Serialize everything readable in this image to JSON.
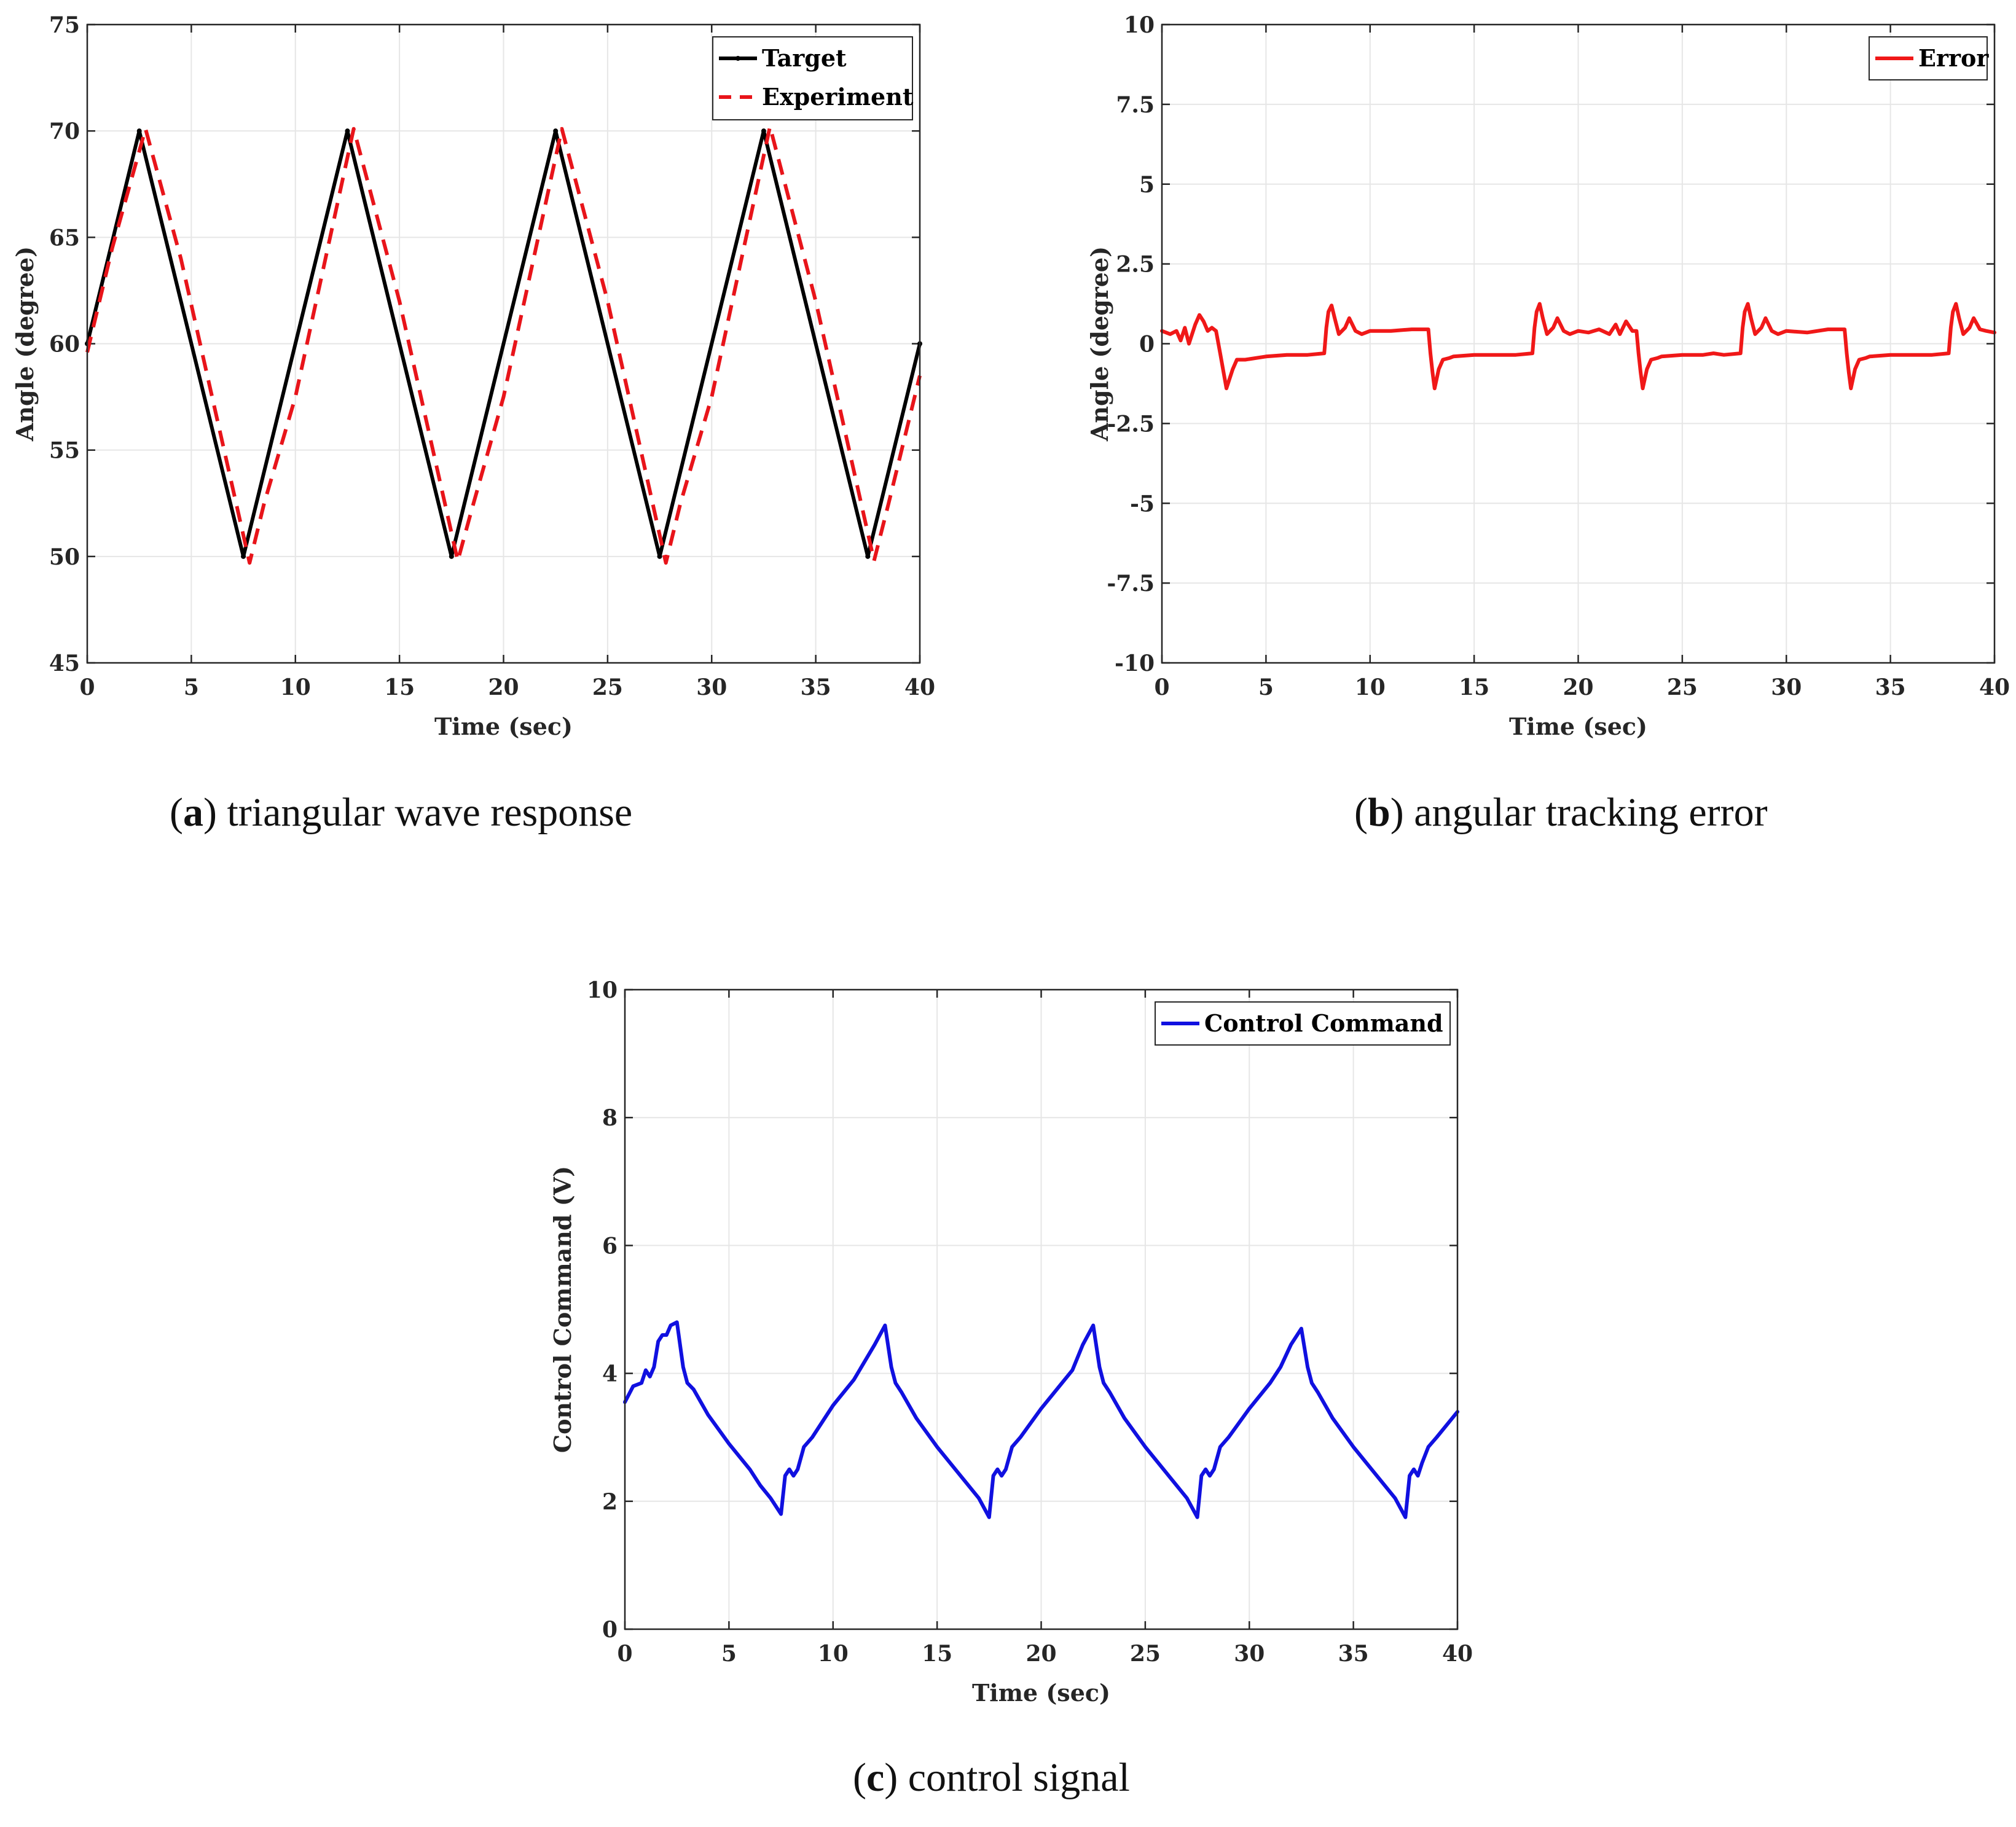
{
  "figure": {
    "captions": [
      {
        "letter": "a",
        "text": "triangular wave response"
      },
      {
        "letter": "b",
        "text": "angular tracking error"
      },
      {
        "letter": "c",
        "text": "control signal"
      }
    ]
  },
  "colors": {
    "target": "#000000",
    "experiment": "#e8141a",
    "error": "#f01818",
    "control": "#1010e0",
    "grid": "#e6e6e6",
    "axis": "#262626"
  },
  "chart_data": [
    {
      "id": "a",
      "type": "line",
      "title": "",
      "xlabel": "Time (sec)",
      "ylabel": "Angle (degree)",
      "xlim": [
        0,
        40
      ],
      "ylim": [
        45,
        75
      ],
      "xticks": [
        0,
        5,
        10,
        15,
        20,
        25,
        30,
        35,
        40
      ],
      "yticks": [
        45,
        50,
        55,
        60,
        65,
        70,
        75
      ],
      "grid": true,
      "legend": "top-right",
      "series": [
        {
          "name": "Target",
          "style": "solid-dot",
          "color": "#000000",
          "x": [
            0,
            2.5,
            7.5,
            12.5,
            17.5,
            22.5,
            27.5,
            32.5,
            37.5,
            40
          ],
          "y": [
            60,
            70,
            50,
            70,
            50,
            70,
            50,
            70,
            50,
            60
          ]
        },
        {
          "name": "Experiment",
          "style": "dashed",
          "color": "#e8141a",
          "x": [
            0,
            1.2,
            2.8,
            4.5,
            7.8,
            8.5,
            10,
            12.8,
            15,
            17.8,
            18.5,
            20,
            22.8,
            25,
            27.8,
            28.5,
            30,
            32.8,
            35,
            37.8,
            38.5,
            40
          ],
          "y": [
            59.6,
            64.5,
            70.1,
            64,
            49.7,
            52.5,
            57.5,
            70.1,
            62,
            49.8,
            52.3,
            57.5,
            70.1,
            62,
            49.7,
            52.5,
            57.5,
            70.2,
            62,
            49.8,
            52.5,
            58.5
          ]
        }
      ]
    },
    {
      "id": "b",
      "type": "line",
      "title": "",
      "xlabel": "Time (sec)",
      "ylabel": "Angle (degree)",
      "xlim": [
        0,
        40
      ],
      "ylim": [
        -10,
        10
      ],
      "xticks": [
        0,
        5,
        10,
        15,
        20,
        25,
        30,
        35,
        40
      ],
      "yticks": [
        -10,
        -7.5,
        -5,
        -2.5,
        0,
        2.5,
        5,
        7.5,
        10
      ],
      "grid": true,
      "legend": "top-right",
      "series": [
        {
          "name": "Error",
          "style": "solid",
          "color": "#f01818",
          "x": [
            0,
            0.4,
            0.7,
            0.9,
            1.1,
            1.3,
            1.6,
            1.8,
            2.0,
            2.2,
            2.4,
            2.6,
            2.8,
            3.1,
            3.4,
            3.6,
            4,
            5,
            6,
            7,
            7.8,
            7.9,
            8.0,
            8.15,
            8.3,
            8.5,
            8.8,
            9.0,
            9.3,
            9.6,
            10,
            11,
            12,
            12.8,
            12.9,
            13.0,
            13.1,
            13.3,
            13.5,
            13.8,
            14,
            15,
            16,
            17,
            17.8,
            17.9,
            18.0,
            18.15,
            18.3,
            18.5,
            18.8,
            19.0,
            19.3,
            19.6,
            20,
            20.5,
            21,
            21.5,
            21.8,
            22,
            22.3,
            22.6,
            22.8,
            22.9,
            23.0,
            23.1,
            23.3,
            23.5,
            23.8,
            24,
            25,
            26,
            26.5,
            27,
            27.8,
            27.9,
            28.0,
            28.15,
            28.3,
            28.5,
            28.8,
            29.0,
            29.3,
            29.6,
            30,
            31,
            32,
            32.8,
            32.9,
            33.0,
            33.1,
            33.3,
            33.5,
            33.8,
            34,
            35,
            36,
            37,
            37.8,
            37.9,
            38.0,
            38.15,
            38.3,
            38.5,
            38.8,
            39.0,
            39.3,
            39.6,
            40
          ],
          "y": [
            0.4,
            0.3,
            0.4,
            0.1,
            0.5,
            0.0,
            0.6,
            0.9,
            0.7,
            0.4,
            0.5,
            0.4,
            -0.3,
            -1.4,
            -0.8,
            -0.5,
            -0.5,
            -0.4,
            -0.35,
            -0.35,
            -0.3,
            0.5,
            1.0,
            1.2,
            0.8,
            0.3,
            0.5,
            0.8,
            0.4,
            0.3,
            0.4,
            0.4,
            0.45,
            0.45,
            -0.3,
            -0.9,
            -1.4,
            -0.8,
            -0.5,
            -0.45,
            -0.4,
            -0.35,
            -0.35,
            -0.35,
            -0.3,
            0.5,
            1.0,
            1.25,
            0.8,
            0.3,
            0.5,
            0.8,
            0.4,
            0.3,
            0.4,
            0.35,
            0.45,
            0.3,
            0.6,
            0.3,
            0.7,
            0.4,
            0.4,
            -0.3,
            -0.9,
            -1.4,
            -0.8,
            -0.5,
            -0.45,
            -0.4,
            -0.35,
            -0.35,
            -0.3,
            -0.35,
            -0.3,
            0.5,
            1.0,
            1.25,
            0.8,
            0.3,
            0.5,
            0.8,
            0.4,
            0.3,
            0.4,
            0.35,
            0.45,
            0.45,
            -0.3,
            -0.9,
            -1.4,
            -0.8,
            -0.5,
            -0.45,
            -0.4,
            -0.35,
            -0.35,
            -0.35,
            -0.3,
            0.5,
            1.0,
            1.25,
            0.8,
            0.3,
            0.5,
            0.8,
            0.45,
            0.4,
            0.35
          ]
        }
      ]
    },
    {
      "id": "c",
      "type": "line",
      "title": "",
      "xlabel": "Time (sec)",
      "ylabel": "Control Command (V)",
      "xlim": [
        0,
        40
      ],
      "ylim": [
        0,
        10
      ],
      "xticks": [
        0,
        5,
        10,
        15,
        20,
        25,
        30,
        35,
        40
      ],
      "yticks": [
        0,
        2,
        4,
        6,
        8,
        10
      ],
      "grid": true,
      "legend": "top-right",
      "series": [
        {
          "name": "Control Command",
          "style": "solid",
          "color": "#1010e0",
          "x": [
            0,
            0.4,
            0.8,
            1.0,
            1.2,
            1.4,
            1.6,
            1.8,
            2.0,
            2.2,
            2.5,
            2.8,
            3.0,
            3.3,
            4,
            5,
            6,
            6.5,
            7,
            7.5,
            7.7,
            7.9,
            8.1,
            8.3,
            8.6,
            9,
            10,
            11,
            12,
            12.5,
            12.8,
            13,
            13.3,
            14,
            15,
            16,
            17,
            17.5,
            17.7,
            17.9,
            18.1,
            18.3,
            18.6,
            19,
            20,
            21,
            21.5,
            22,
            22.5,
            22.8,
            23,
            23.3,
            24,
            25,
            26,
            27,
            27.5,
            27.7,
            27.9,
            28.1,
            28.3,
            28.6,
            29,
            30,
            31,
            31.5,
            32,
            32.5,
            32.8,
            33,
            33.3,
            34,
            35,
            36,
            37,
            37.5,
            37.7,
            37.9,
            38.1,
            38.3,
            38.6,
            39,
            40
          ],
          "y": [
            3.55,
            3.8,
            3.85,
            4.05,
            3.95,
            4.1,
            4.5,
            4.6,
            4.6,
            4.75,
            4.8,
            4.1,
            3.85,
            3.75,
            3.35,
            2.9,
            2.5,
            2.25,
            2.05,
            1.8,
            2.4,
            2.5,
            2.4,
            2.5,
            2.85,
            3.0,
            3.5,
            3.9,
            4.45,
            4.75,
            4.1,
            3.85,
            3.7,
            3.3,
            2.85,
            2.45,
            2.05,
            1.75,
            2.4,
            2.5,
            2.4,
            2.5,
            2.85,
            3.0,
            3.45,
            3.85,
            4.05,
            4.45,
            4.75,
            4.1,
            3.85,
            3.7,
            3.3,
            2.85,
            2.45,
            2.05,
            1.75,
            2.4,
            2.5,
            2.4,
            2.5,
            2.85,
            3.0,
            3.45,
            3.85,
            4.1,
            4.45,
            4.7,
            4.1,
            3.85,
            3.7,
            3.3,
            2.85,
            2.45,
            2.05,
            1.75,
            2.4,
            2.5,
            2.4,
            2.6,
            2.85,
            3.0,
            3.4
          ]
        }
      ]
    }
  ]
}
